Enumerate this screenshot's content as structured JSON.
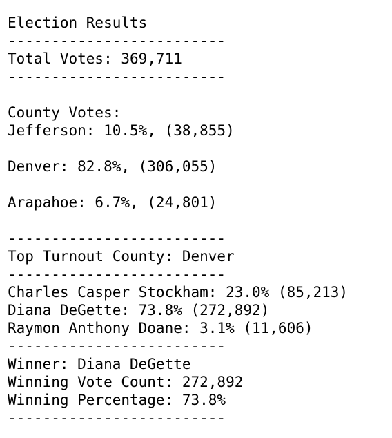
{
  "report": {
    "title": "Election Results",
    "divider": "-------------------------",
    "total_votes": "Total Votes: 369,711",
    "county_header": "County Votes:",
    "counties": [
      "Jefferson: 10.5%, (38,855)",
      "Denver: 82.8%, (306,055)",
      "Arapahoe: 6.7%, (24,801)"
    ],
    "top_county": "Top Turnout County: Denver",
    "candidates": [
      "Charles Casper Stockham: 23.0% (85,213)",
      "Diana DeGette: 73.8% (272,892)",
      "Raymon Anthony Doane: 3.1% (11,606)"
    ],
    "winner": "Winner: Diana DeGette",
    "winning_vote_count": "Winning Vote Count: 272,892",
    "winning_percentage": "Winning Percentage: 73.8%"
  }
}
